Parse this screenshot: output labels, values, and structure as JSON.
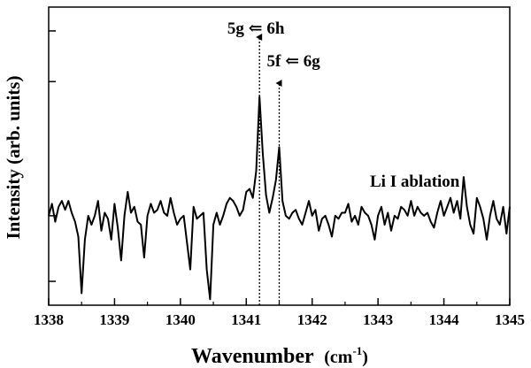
{
  "chart_data": {
    "type": "line",
    "xlabel_main": "Wavenumber",
    "xlabel_unit_open": "(cm",
    "xlabel_unit_exp": "-1",
    "xlabel_unit_close": ")",
    "ylabel": "Intensity (arb. units)",
    "annotation_label": "Li I ablation",
    "xlim": [
      1338,
      1345
    ],
    "ylim": [
      0,
      1
    ],
    "x_ticks": [
      "1338",
      "1339",
      "1340",
      "1341",
      "1342",
      "1343",
      "1344",
      "1345"
    ],
    "y_tick_values": [
      0.08,
      0.3,
      0.75,
      0.92
    ],
    "y_tick_labels_shown": false,
    "grid": false,
    "transitions": [
      {
        "label": "5g ⇐ 6h",
        "x": 1341.2
      },
      {
        "label": "5f ⇐ 6g",
        "x": 1341.5
      }
    ],
    "series": [
      {
        "x": [
          1338.0,
          1338.05,
          1338.1,
          1338.15,
          1338.2,
          1338.25,
          1338.3,
          1338.35,
          1338.4,
          1338.45,
          1338.5,
          1338.55,
          1338.6,
          1338.65,
          1338.7,
          1338.75,
          1338.8,
          1338.85,
          1338.9,
          1338.95,
          1339.0,
          1339.05,
          1339.1,
          1339.15,
          1339.2,
          1339.25,
          1339.3,
          1339.35,
          1339.4,
          1339.45,
          1339.5,
          1339.55,
          1339.6,
          1339.65,
          1339.7,
          1339.75,
          1339.8,
          1339.85,
          1339.9,
          1339.95,
          1340.0,
          1340.05,
          1340.1,
          1340.15,
          1340.2,
          1340.25,
          1340.3,
          1340.35,
          1340.4,
          1340.45,
          1340.5,
          1340.55,
          1340.6,
          1340.65,
          1340.7,
          1340.75,
          1340.8,
          1340.85,
          1340.9,
          1340.95,
          1341.0,
          1341.05,
          1341.1,
          1341.15,
          1341.2,
          1341.25,
          1341.3,
          1341.35,
          1341.4,
          1341.45,
          1341.5,
          1341.55,
          1341.6,
          1341.65,
          1341.7,
          1341.75,
          1341.8,
          1341.85,
          1341.9,
          1341.95,
          1342.0,
          1342.05,
          1342.1,
          1342.15,
          1342.2,
          1342.25,
          1342.3,
          1342.35,
          1342.4,
          1342.45,
          1342.5,
          1342.55,
          1342.6,
          1342.65,
          1342.7,
          1342.75,
          1342.8,
          1342.85,
          1342.9,
          1342.95,
          1343.0,
          1343.05,
          1343.1,
          1343.15,
          1343.2,
          1343.25,
          1343.3,
          1343.35,
          1343.4,
          1343.45,
          1343.5,
          1343.55,
          1343.6,
          1343.65,
          1343.7,
          1343.75,
          1343.8,
          1343.85,
          1343.9,
          1343.95,
          1344.0,
          1344.05,
          1344.1,
          1344.15,
          1344.2,
          1344.25,
          1344.3,
          1344.35,
          1344.4,
          1344.45,
          1344.5,
          1344.55,
          1344.6,
          1344.65,
          1344.7,
          1344.75,
          1344.8,
          1344.85,
          1344.9,
          1344.95,
          1345.0
        ],
        "y": [
          0.3,
          0.34,
          0.28,
          0.33,
          0.35,
          0.32,
          0.35,
          0.31,
          0.28,
          0.23,
          0.04,
          0.22,
          0.3,
          0.27,
          0.3,
          0.35,
          0.25,
          0.31,
          0.29,
          0.22,
          0.34,
          0.26,
          0.15,
          0.3,
          0.38,
          0.31,
          0.33,
          0.28,
          0.27,
          0.16,
          0.3,
          0.34,
          0.31,
          0.32,
          0.35,
          0.31,
          0.3,
          0.36,
          0.31,
          0.27,
          0.29,
          0.3,
          0.21,
          0.12,
          0.33,
          0.29,
          0.3,
          0.31,
          0.12,
          0.02,
          0.27,
          0.31,
          0.27,
          0.3,
          0.34,
          0.36,
          0.35,
          0.33,
          0.3,
          0.32,
          0.38,
          0.39,
          0.36,
          0.45,
          0.7,
          0.51,
          0.37,
          0.31,
          0.36,
          0.42,
          0.53,
          0.35,
          0.3,
          0.29,
          0.31,
          0.32,
          0.29,
          0.27,
          0.31,
          0.35,
          0.3,
          0.32,
          0.25,
          0.29,
          0.3,
          0.27,
          0.23,
          0.3,
          0.29,
          0.31,
          0.31,
          0.34,
          0.28,
          0.3,
          0.27,
          0.33,
          0.31,
          0.3,
          0.27,
          0.22,
          0.3,
          0.33,
          0.27,
          0.31,
          0.25,
          0.3,
          0.29,
          0.33,
          0.32,
          0.3,
          0.35,
          0.3,
          0.33,
          0.31,
          0.3,
          0.31,
          0.28,
          0.26,
          0.31,
          0.35,
          0.3,
          0.33,
          0.36,
          0.31,
          0.35,
          0.29,
          0.43,
          0.33,
          0.27,
          0.24,
          0.36,
          0.33,
          0.29,
          0.22,
          0.3,
          0.35,
          0.29,
          0.27,
          0.33,
          0.24,
          0.33
        ]
      }
    ]
  }
}
